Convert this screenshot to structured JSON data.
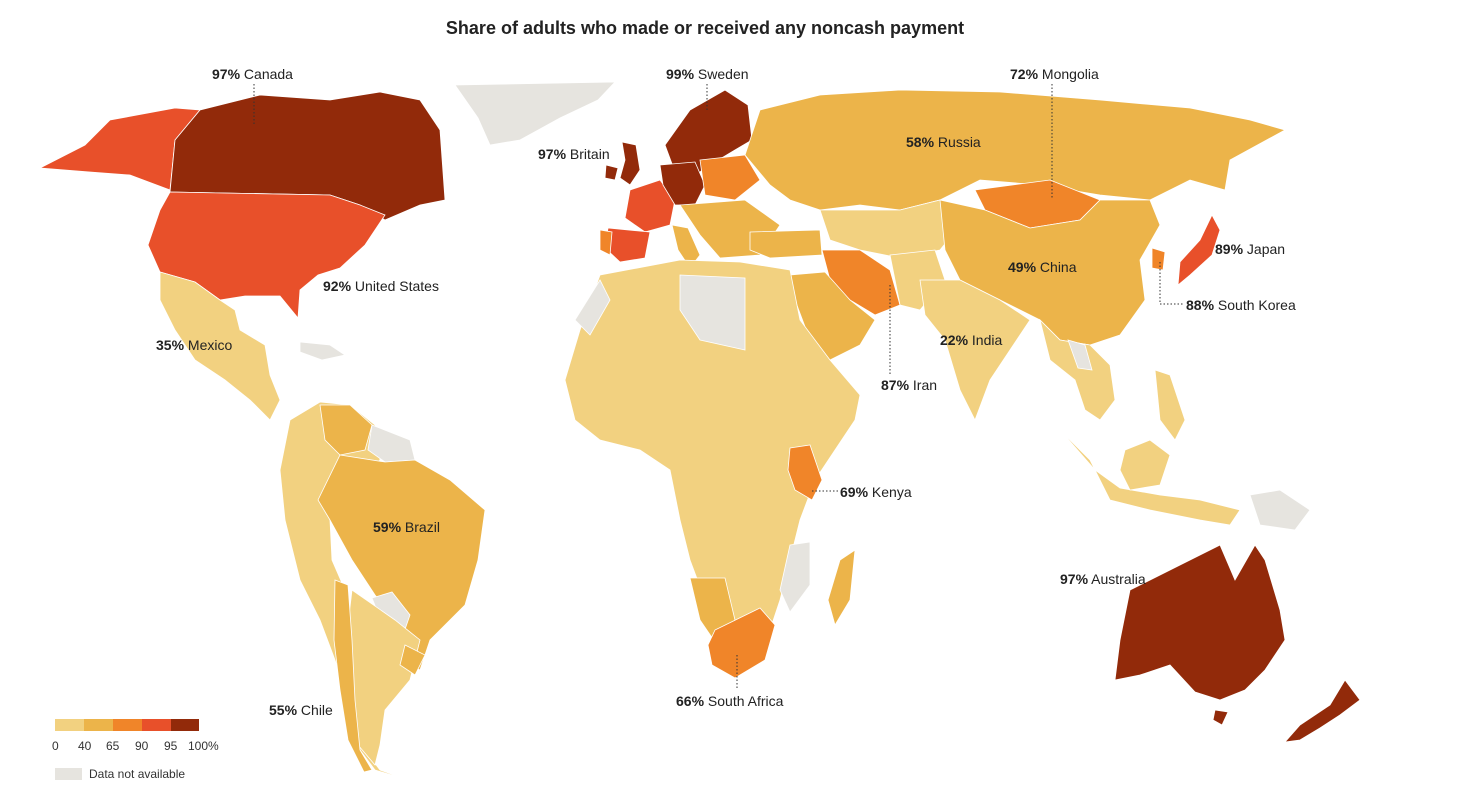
{
  "title": "Share of adults who made or received any noncash payment",
  "colors": {
    "c0_40": "#f2d180",
    "c40_65": "#ecb44a",
    "c65_90": "#f08529",
    "c90_95": "#e8502a",
    "c95_100": "#922a0a",
    "na": "#e6e4df"
  },
  "legend": {
    "ticks": [
      "0",
      "40",
      "65",
      "90",
      "95",
      "100%"
    ],
    "na_label": "Data not available"
  },
  "labels": [
    {
      "id": "canada",
      "pct": "97%",
      "name": "Canada"
    },
    {
      "id": "sweden",
      "pct": "99%",
      "name": "Sweden"
    },
    {
      "id": "mongolia",
      "pct": "72%",
      "name": "Mongolia"
    },
    {
      "id": "britain",
      "pct": "97%",
      "name": "Britain"
    },
    {
      "id": "russia",
      "pct": "58%",
      "name": "Russia"
    },
    {
      "id": "japan",
      "pct": "89%",
      "name": "Japan"
    },
    {
      "id": "china",
      "pct": "49%",
      "name": "China"
    },
    {
      "id": "us",
      "pct": "92%",
      "name": "United States"
    },
    {
      "id": "korea",
      "pct": "88%",
      "name": "South Korea"
    },
    {
      "id": "india",
      "pct": "22%",
      "name": "India"
    },
    {
      "id": "mexico",
      "pct": "35%",
      "name": "Mexico"
    },
    {
      "id": "iran",
      "pct": "87%",
      "name": "Iran"
    },
    {
      "id": "kenya",
      "pct": "69%",
      "name": "Kenya"
    },
    {
      "id": "brazil",
      "pct": "59%",
      "name": "Brazil"
    },
    {
      "id": "australia",
      "pct": "97%",
      "name": "Australia"
    },
    {
      "id": "safrica",
      "pct": "66%",
      "name": "South Africa"
    },
    {
      "id": "chile",
      "pct": "55%",
      "name": "Chile"
    }
  ]
}
